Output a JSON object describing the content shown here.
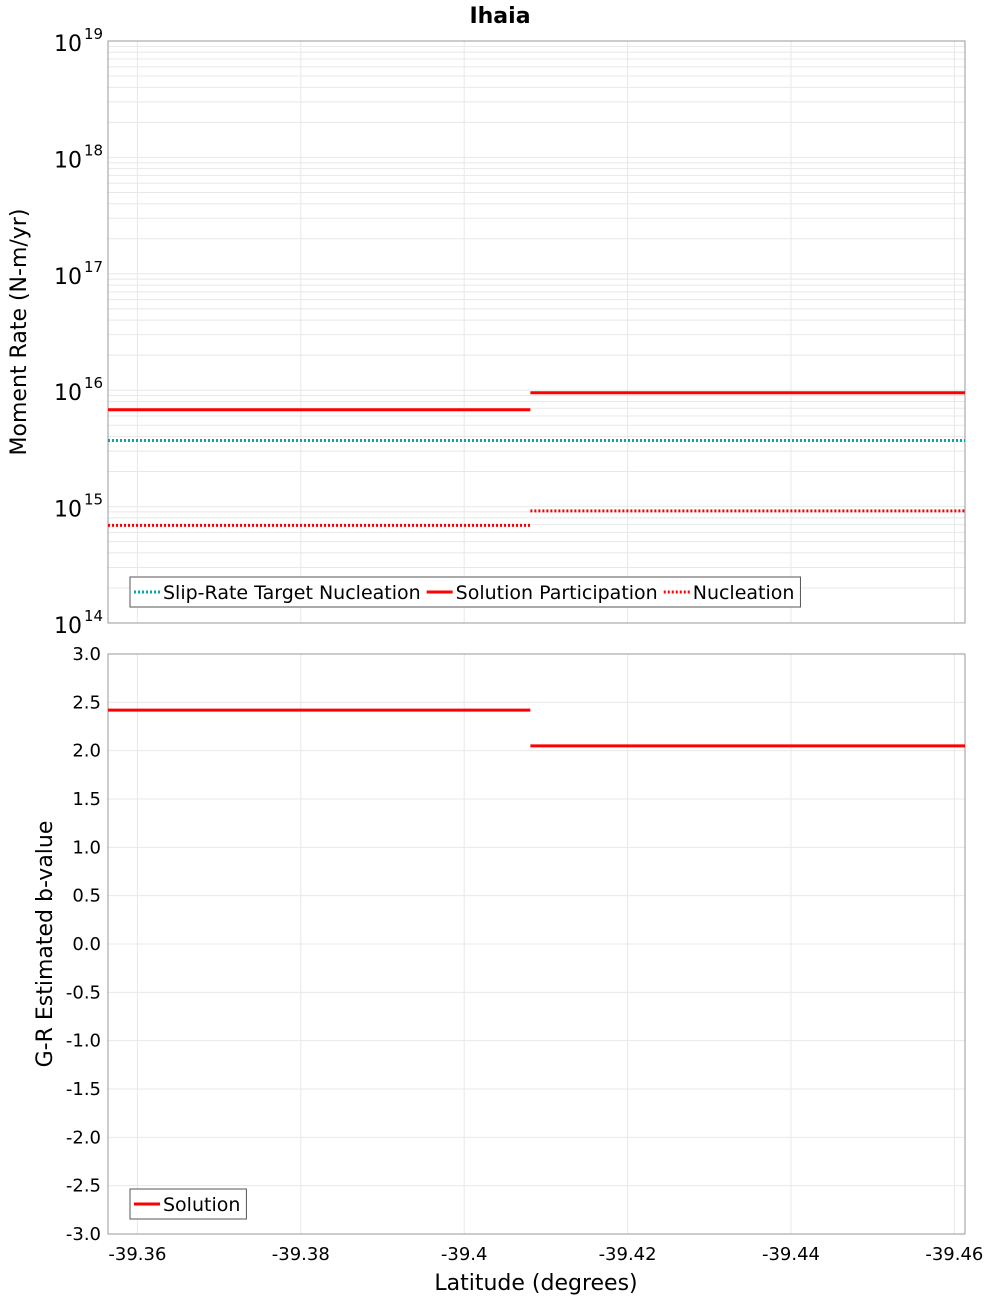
{
  "chart_data": [
    {
      "type": "line",
      "title": "Ihaia",
      "xlabel": "Latitude (degrees)",
      "ylabel": "Moment Rate (N-m/yr)",
      "yscale": "log",
      "ylim": [
        100000000000000.0,
        1e+19
      ],
      "xlim": [
        -39.3564,
        -39.4613
      ],
      "y_ticks": [
        {
          "base": "10",
          "exp": "14",
          "value": 100000000000000.0
        },
        {
          "base": "10",
          "exp": "15",
          "value": 1000000000000000.0
        },
        {
          "base": "10",
          "exp": "16",
          "value": 1e+16
        },
        {
          "base": "10",
          "exp": "17",
          "value": 1e+17
        },
        {
          "base": "10",
          "exp": "18",
          "value": 1e+18
        },
        {
          "base": "10",
          "exp": "19",
          "value": 1e+19
        }
      ],
      "grid": true,
      "legend_position": "bottom-left",
      "series": [
        {
          "name": "Slip-Rate Target Nucleation",
          "color": "#00aaaa",
          "style": "dotted",
          "segments": [
            {
              "x": [
                -39.3564,
                -39.4613
              ],
              "y": 3700000000000000.0
            }
          ]
        },
        {
          "name": "Solution Participation",
          "color": "#ff0000",
          "style": "solid",
          "segments": [
            {
              "x": [
                -39.3564,
                -39.4081
              ],
              "y": 6800000000000000.0
            },
            {
              "x": [
                -39.4081,
                -39.4613
              ],
              "y": 9500000000000000.0
            }
          ]
        },
        {
          "name": "Nucleation",
          "color": "#ff0000",
          "style": "dotted",
          "segments": [
            {
              "x": [
                -39.3564,
                -39.4081
              ],
              "y": 690000000000000.0
            },
            {
              "x": [
                -39.4081,
                -39.4613
              ],
              "y": 920000000000000.0
            }
          ]
        }
      ]
    },
    {
      "type": "line",
      "xlabel": "Latitude (degrees)",
      "ylabel": "G-R Estimated b-value",
      "ylim": [
        -3.0,
        3.0
      ],
      "xlim": [
        -39.3564,
        -39.4613
      ],
      "y_ticks": [
        "3.0",
        "2.5",
        "2.0",
        "1.5",
        "1.0",
        "0.5",
        "0.0",
        "-0.5",
        "-1.0",
        "-1.5",
        "-2.0",
        "-2.5",
        "-3.0"
      ],
      "x_ticks": [
        "-39.36",
        "-39.38",
        "-39.4",
        "-39.42",
        "-39.44",
        "-39.46"
      ],
      "grid": true,
      "legend_position": "bottom-left",
      "series": [
        {
          "name": "Solution",
          "color": "#ff0000",
          "style": "solid",
          "segments": [
            {
              "x": [
                -39.3564,
                -39.4081
              ],
              "y": 2.42
            },
            {
              "x": [
                -39.4081,
                -39.4613
              ],
              "y": 2.05
            }
          ]
        }
      ]
    }
  ]
}
